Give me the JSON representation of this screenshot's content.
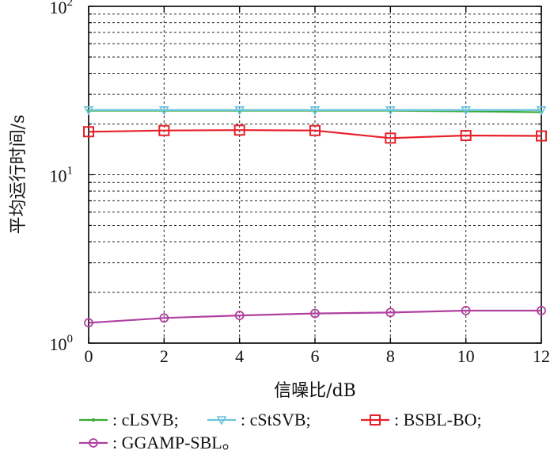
{
  "chart_data": {
    "type": "line",
    "xlabel": "信噪比/dB",
    "ylabel": "平均运行时间/s",
    "x": [
      0,
      2,
      4,
      6,
      8,
      10,
      12
    ],
    "xlim": [
      0,
      12
    ],
    "ylim": [
      1,
      100
    ],
    "yscale": "log",
    "grid": true,
    "x_tick_labels": [
      "0",
      "2",
      "4",
      "6",
      "8",
      "10",
      "12"
    ],
    "y_ticks": [
      {
        "base": "10",
        "exp": "0"
      },
      {
        "base": "10",
        "exp": "1"
      },
      {
        "base": "10",
        "exp": "2"
      }
    ],
    "legend_position": "bottom",
    "series": [
      {
        "name": ": cLSVB;",
        "color": "#3aaa35",
        "marker": "dot",
        "values": [
          24.0,
          24.0,
          24.0,
          24.0,
          24.0,
          23.8,
          23.5
        ]
      },
      {
        "name": ": cStSVB;",
        "color": "#6cc4dc",
        "marker": "triangle-down",
        "values": [
          24.2,
          24.2,
          24.2,
          24.2,
          24.2,
          24.2,
          24.2
        ]
      },
      {
        "name": ": BSBL-BO;",
        "color": "#e8202a",
        "marker": "square",
        "values": [
          18.0,
          18.3,
          18.4,
          18.3,
          16.5,
          17.1,
          17.0
        ]
      },
      {
        "name": ": GGAMP-SBL。",
        "color": "#b040a0",
        "marker": "circle",
        "values": [
          1.32,
          1.41,
          1.46,
          1.5,
          1.52,
          1.56,
          1.56
        ]
      }
    ]
  }
}
